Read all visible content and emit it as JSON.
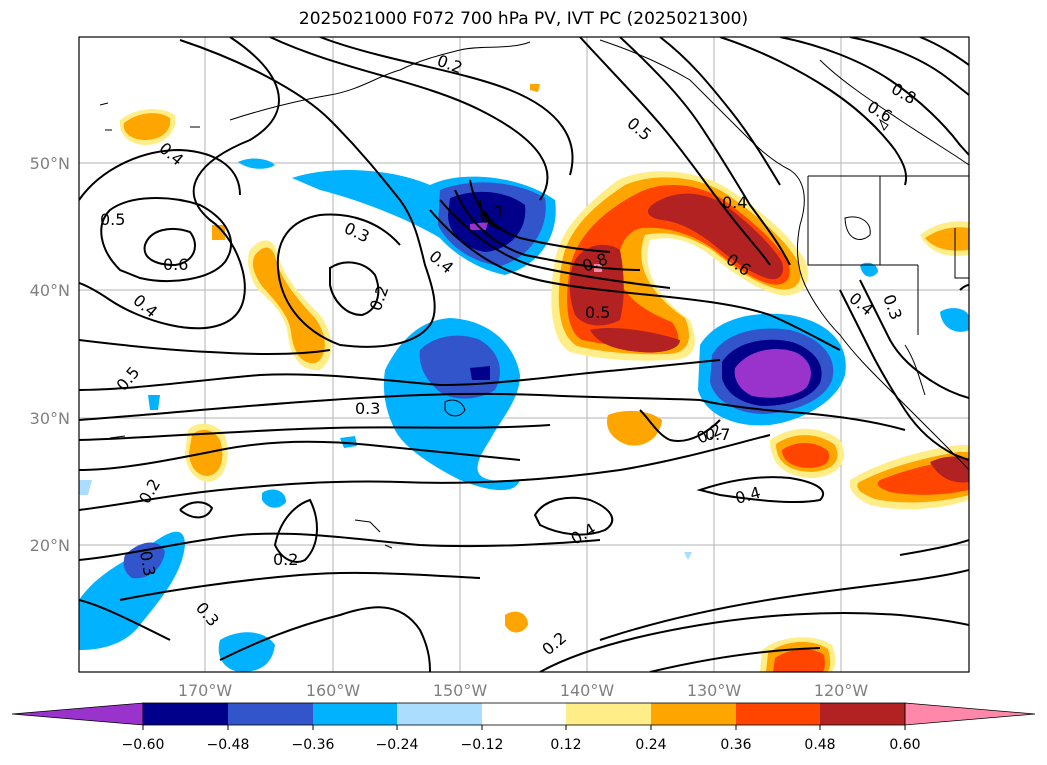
{
  "title": "2025021000 F072 700 hPa PV, IVT PC (2025021300)",
  "map": {
    "lon_range": [
      -180,
      -110
    ],
    "lat_range": [
      10,
      60
    ],
    "lat_labels": [
      "50°N",
      "40°N",
      "30°N",
      "20°N"
    ],
    "lon_labels": [
      "170°W",
      "160°W",
      "150°W",
      "140°W",
      "130°W",
      "120°W"
    ],
    "gridlines": true
  },
  "contour_labels": [
    "0.4",
    "0.5",
    "0.6",
    "0.4",
    "0.5",
    "0.3",
    "0.2",
    "0.4",
    "0.3",
    "0.7",
    "0.8",
    "0.6",
    "0.5",
    "0.4",
    "0.6",
    "0.8",
    "0.5",
    "0.3",
    "0.4",
    "0.3",
    "0.2",
    "0.2",
    "0.3",
    "0.2",
    "0.4",
    "0.4",
    "0.2",
    "0.2",
    "0.7"
  ],
  "colorbar": {
    "tick_labels": [
      "−0.60",
      "−0.48",
      "−0.36",
      "−0.24",
      "−0.12",
      "0.12",
      "0.24",
      "0.36",
      "0.48",
      "0.60"
    ],
    "colors": [
      "#9933cc",
      "#00008b",
      "#3355cc",
      "#00b2ff",
      "#aaddff",
      "#ffffff",
      "#ffee88",
      "#ffa500",
      "#ff4500",
      "#b22222",
      "#ff88aa"
    ]
  }
}
